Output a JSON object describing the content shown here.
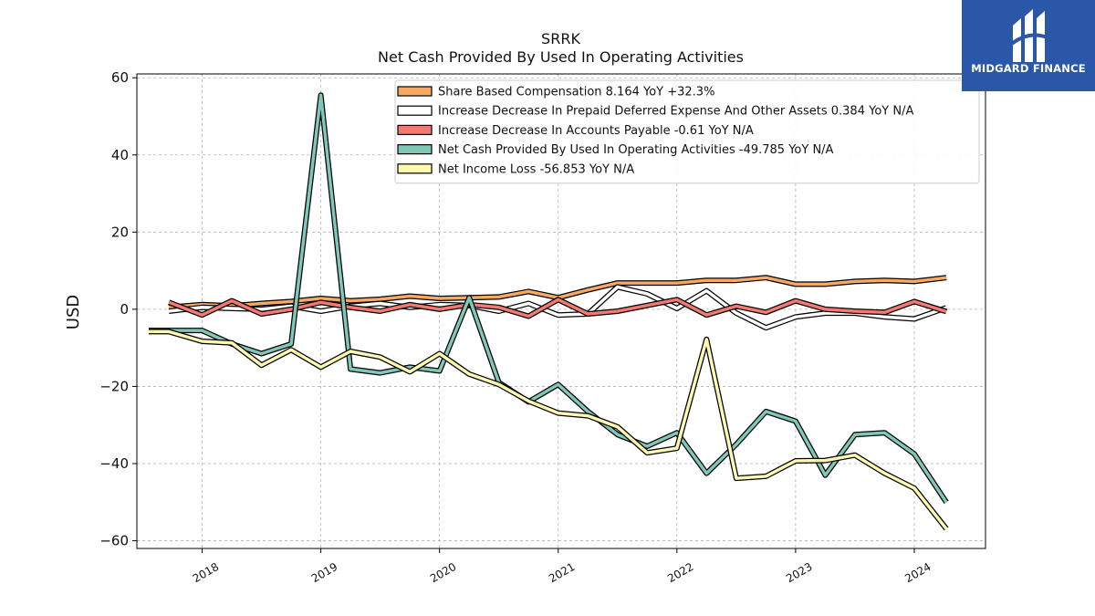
{
  "chart_data": {
    "type": "line",
    "title": "SRRK",
    "subtitle": "Net Cash Provided By Used In Operating Activities",
    "ylabel": "USD",
    "xlabel": "",
    "ylim": [
      -62,
      61
    ],
    "xlim": [
      2017.45,
      2024.6
    ],
    "yticks": [
      -60,
      -40,
      -20,
      0,
      20,
      40,
      60
    ],
    "xticks": [
      2018,
      2019,
      2020,
      2021,
      2022,
      2023,
      2024
    ],
    "xtick_labels": [
      "2018",
      "2019",
      "2020",
      "2021",
      "2022",
      "2023",
      "2024"
    ],
    "grid": true,
    "legend_position": "top-right",
    "series": [
      {
        "name": "Share Based Compensation",
        "legend": "Share Based Compensation  8.164 YoY +32.3%",
        "color": "#f6a963",
        "x": [
          2017.72,
          2018.0,
          2018.25,
          2018.5,
          2018.75,
          2019.0,
          2019.25,
          2019.5,
          2019.75,
          2020.0,
          2020.25,
          2020.5,
          2020.75,
          2021.0,
          2021.25,
          2021.5,
          2021.75,
          2022.0,
          2022.25,
          2022.5,
          2022.75,
          2023.0,
          2023.25,
          2023.5,
          2023.75,
          2024.0,
          2024.27
        ],
        "y": [
          0.5,
          1.2,
          0.9,
          1.5,
          2.0,
          2.8,
          2.2,
          2.6,
          3.4,
          2.8,
          3.0,
          3.2,
          4.6,
          3.0,
          5.0,
          6.8,
          6.8,
          6.8,
          7.5,
          7.5,
          8.2,
          6.5,
          6.5,
          7.2,
          7.5,
          7.2,
          8.2
        ]
      },
      {
        "name": "Increase Decrease In Prepaid Deferred Expense And Other Assets",
        "legend": "Increase Decrease In Prepaid Deferred Expense And Other Assets  0.384 YoY N/A",
        "color": "#ffffff",
        "x": [
          2017.72,
          2018.0,
          2018.25,
          2018.5,
          2018.75,
          2019.0,
          2019.25,
          2019.5,
          2019.75,
          2020.0,
          2020.25,
          2020.5,
          2020.75,
          2021.0,
          2021.25,
          2021.5,
          2021.75,
          2022.0,
          2022.25,
          2022.5,
          2022.75,
          2023.0,
          2023.25,
          2023.5,
          2023.75,
          2024.0,
          2024.27
        ],
        "y": [
          -0.5,
          0.5,
          0.2,
          0.0,
          0.8,
          -0.5,
          0.8,
          1.5,
          0.5,
          1.2,
          1.0,
          -0.5,
          1.5,
          -1.5,
          -1.2,
          5.8,
          4.0,
          0.2,
          4.8,
          -1.0,
          -4.8,
          -2.0,
          -1.0,
          -1.0,
          -2.0,
          -2.5,
          0.4
        ]
      },
      {
        "name": "Increase Decrease In Accounts Payable",
        "legend": "Increase Decrease In Accounts Payable  -0.61 YoY N/A",
        "color": "#f47a71",
        "x": [
          2017.72,
          2018.0,
          2018.25,
          2018.5,
          2018.75,
          2019.0,
          2019.25,
          2019.5,
          2019.75,
          2020.0,
          2020.25,
          2020.5,
          2020.75,
          2021.0,
          2021.25,
          2021.5,
          2021.75,
          2022.0,
          2022.25,
          2022.5,
          2022.75,
          2023.0,
          2023.25,
          2023.5,
          2023.75,
          2024.0,
          2024.27
        ],
        "y": [
          1.8,
          -1.5,
          2.2,
          -1.2,
          0.0,
          1.8,
          0.5,
          -0.5,
          1.2,
          0.0,
          1.2,
          0.5,
          -1.8,
          2.5,
          -1.2,
          -0.5,
          1.0,
          2.5,
          -1.5,
          0.8,
          -0.8,
          2.2,
          0.0,
          -0.5,
          -0.8,
          2.0,
          -0.6
        ]
      },
      {
        "name": "Net Cash Provided By Used In Operating Activities",
        "legend": "Net Cash Provided By Used In Operating Activities  -49.785 YoY N/A",
        "color": "#7fc8b8",
        "x": [
          2017.55,
          2017.72,
          2018.0,
          2018.25,
          2018.5,
          2018.75,
          2019.0,
          2019.25,
          2019.5,
          2019.75,
          2020.0,
          2020.25,
          2020.5,
          2020.75,
          2021.0,
          2021.25,
          2021.5,
          2021.75,
          2022.0,
          2022.25,
          2022.5,
          2022.75,
          2023.0,
          2023.25,
          2023.5,
          2023.75,
          2024.0,
          2024.27
        ],
        "y": [
          -5.5,
          -5.5,
          -5.5,
          -9.0,
          -11.5,
          -9.0,
          55.5,
          -15.5,
          -16.5,
          -15.0,
          -16.0,
          3.0,
          -19.0,
          -24.0,
          -19.5,
          -26.5,
          -32.5,
          -35.5,
          -32.0,
          -42.5,
          -35.0,
          -26.5,
          -29.0,
          -43.0,
          -32.5,
          -32.0,
          -37.5,
          -50.0
        ]
      },
      {
        "name": "Net Income Loss",
        "legend": "Net Income Loss  -56.853 YoY N/A",
        "color": "#fdf9b0",
        "x": [
          2017.55,
          2017.72,
          2018.0,
          2018.25,
          2018.5,
          2018.75,
          2019.0,
          2019.25,
          2019.5,
          2019.75,
          2020.0,
          2020.25,
          2020.5,
          2020.75,
          2021.0,
          2021.25,
          2021.5,
          2021.75,
          2022.0,
          2022.25,
          2022.5,
          2022.75,
          2023.0,
          2023.25,
          2023.5,
          2023.75,
          2024.0,
          2024.27
        ],
        "y": [
          -5.8,
          -5.8,
          -8.3,
          -8.7,
          -14.5,
          -10.5,
          -15.0,
          -10.9,
          -12.4,
          -16.2,
          -11.5,
          -16.8,
          -19.5,
          -23.8,
          -26.9,
          -27.6,
          -30.5,
          -37.2,
          -36.0,
          -7.8,
          -43.8,
          -43.3,
          -39.3,
          -39.2,
          -37.8,
          -42.5,
          -46.4,
          -56.9
        ]
      }
    ]
  },
  "logo": {
    "name": "MIDGARD FINANCE"
  }
}
